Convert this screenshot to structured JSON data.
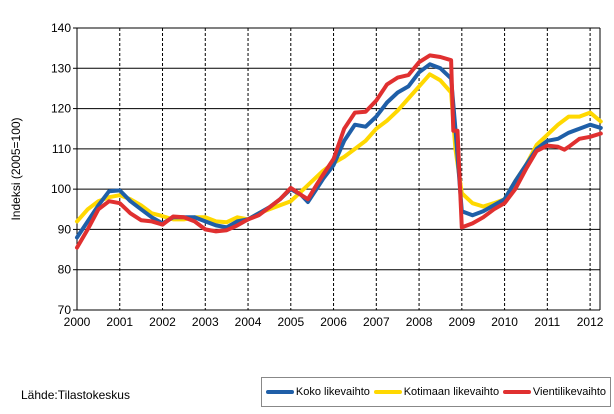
{
  "chart_data": {
    "type": "line",
    "title": "",
    "xlabel": "",
    "ylabel": "Indeksi (2005=100)",
    "xlim": [
      2000,
      2012.25
    ],
    "ylim": [
      70,
      140
    ],
    "yticks": [
      70,
      80,
      90,
      100,
      110,
      120,
      130,
      140
    ],
    "xticks": [
      "2000",
      "2001",
      "2002",
      "2003",
      "2004",
      "2005",
      "2006",
      "2007",
      "2008",
      "2009",
      "2010",
      "2011",
      "2012"
    ],
    "grid": {
      "horizontal": "solid",
      "vertical": "dashed"
    },
    "legend_position": "bottom-right",
    "series": [
      {
        "name": "Koko likevaihto",
        "color": "#1f5fa8",
        "points": [
          [
            2000,
            88
          ],
          [
            2000.25,
            92
          ],
          [
            2000.5,
            96
          ],
          [
            2000.75,
            99.5
          ],
          [
            2001,
            99.7
          ],
          [
            2001.25,
            97
          ],
          [
            2001.5,
            95
          ],
          [
            2001.75,
            93
          ],
          [
            2002,
            91.5
          ],
          [
            2002.25,
            93
          ],
          [
            2002.5,
            93
          ],
          [
            2002.75,
            93
          ],
          [
            2003,
            92
          ],
          [
            2003.25,
            91
          ],
          [
            2003.5,
            90.5
          ],
          [
            2003.75,
            92
          ],
          [
            2004,
            92.5
          ],
          [
            2004.25,
            94
          ],
          [
            2004.5,
            95.5
          ],
          [
            2004.75,
            97.5
          ],
          [
            2005,
            100
          ],
          [
            2005.25,
            98.5
          ],
          [
            2005.4,
            96.8
          ],
          [
            2005.6,
            100
          ],
          [
            2005.75,
            102.5
          ],
          [
            2006,
            106
          ],
          [
            2006.25,
            112
          ],
          [
            2006.5,
            116
          ],
          [
            2006.75,
            115.5
          ],
          [
            2007,
            118
          ],
          [
            2007.25,
            121.5
          ],
          [
            2007.5,
            124
          ],
          [
            2007.75,
            125.5
          ],
          [
            2008,
            129
          ],
          [
            2008.25,
            131
          ],
          [
            2008.5,
            130
          ],
          [
            2008.75,
            127.5
          ],
          [
            2008.85,
            115
          ],
          [
            2009,
            94.5
          ],
          [
            2009.25,
            93.5
          ],
          [
            2009.5,
            94.5
          ],
          [
            2009.75,
            96
          ],
          [
            2010,
            97.5
          ],
          [
            2010.25,
            102
          ],
          [
            2010.5,
            106
          ],
          [
            2010.75,
            110
          ],
          [
            2011,
            112
          ],
          [
            2011.25,
            112.5
          ],
          [
            2011.5,
            114
          ],
          [
            2011.75,
            115
          ],
          [
            2012,
            116
          ],
          [
            2012.25,
            115.2
          ]
        ]
      },
      {
        "name": "Kotimaan likevaihto",
        "color": "#ffd800",
        "points": [
          [
            2000,
            92
          ],
          [
            2000.25,
            95
          ],
          [
            2000.5,
            97
          ],
          [
            2000.75,
            98
          ],
          [
            2001,
            98.5
          ],
          [
            2001.25,
            97.5
          ],
          [
            2001.5,
            96
          ],
          [
            2001.75,
            94
          ],
          [
            2002,
            93.3
          ],
          [
            2002.25,
            92.5
          ],
          [
            2002.5,
            92.5
          ],
          [
            2002.75,
            93
          ],
          [
            2003,
            93
          ],
          [
            2003.25,
            92
          ],
          [
            2003.5,
            91.8
          ],
          [
            2003.75,
            93
          ],
          [
            2004,
            92.5
          ],
          [
            2004.25,
            94
          ],
          [
            2004.5,
            95
          ],
          [
            2004.75,
            96
          ],
          [
            2005,
            97
          ],
          [
            2005.25,
            99.5
          ],
          [
            2005.5,
            102
          ],
          [
            2005.75,
            104.5
          ],
          [
            2006,
            106.5
          ],
          [
            2006.25,
            108
          ],
          [
            2006.5,
            110
          ],
          [
            2006.75,
            112
          ],
          [
            2007,
            115
          ],
          [
            2007.25,
            117
          ],
          [
            2007.5,
            119.5
          ],
          [
            2007.75,
            122.5
          ],
          [
            2008,
            125.5
          ],
          [
            2008.25,
            128.5
          ],
          [
            2008.5,
            127
          ],
          [
            2008.75,
            124
          ],
          [
            2008.85,
            110
          ],
          [
            2009,
            99
          ],
          [
            2009.25,
            96.5
          ],
          [
            2009.5,
            95.7
          ],
          [
            2009.75,
            96.5
          ],
          [
            2010,
            97.5
          ],
          [
            2010.25,
            102
          ],
          [
            2010.5,
            106
          ],
          [
            2010.75,
            111
          ],
          [
            2011,
            113.5
          ],
          [
            2011.25,
            116
          ],
          [
            2011.5,
            118
          ],
          [
            2011.75,
            118
          ],
          [
            2012,
            119
          ],
          [
            2012.25,
            116.8
          ]
        ]
      },
      {
        "name": "Vientilikevaihto",
        "color": "#e03030",
        "points": [
          [
            2000,
            85.5
          ],
          [
            2000.25,
            90
          ],
          [
            2000.5,
            95
          ],
          [
            2000.75,
            97
          ],
          [
            2001,
            96.5
          ],
          [
            2001.25,
            94
          ],
          [
            2001.5,
            92.3
          ],
          [
            2001.75,
            92
          ],
          [
            2002,
            91.2
          ],
          [
            2002.25,
            93.2
          ],
          [
            2002.5,
            93
          ],
          [
            2002.75,
            92
          ],
          [
            2003,
            90
          ],
          [
            2003.25,
            89.5
          ],
          [
            2003.5,
            89.8
          ],
          [
            2003.75,
            91
          ],
          [
            2004,
            92.5
          ],
          [
            2004.25,
            93.5
          ],
          [
            2004.5,
            95.5
          ],
          [
            2004.75,
            97.5
          ],
          [
            2005,
            100.3
          ],
          [
            2005.25,
            98.5
          ],
          [
            2005.4,
            97.5
          ],
          [
            2005.6,
            101
          ],
          [
            2005.75,
            103.5
          ],
          [
            2006,
            107.5
          ],
          [
            2006.25,
            115
          ],
          [
            2006.5,
            119
          ],
          [
            2006.75,
            119.2
          ],
          [
            2007,
            122
          ],
          [
            2007.25,
            126
          ],
          [
            2007.5,
            127.7
          ],
          [
            2007.75,
            128.3
          ],
          [
            2008,
            131.5
          ],
          [
            2008.25,
            133.2
          ],
          [
            2008.5,
            132.8
          ],
          [
            2008.75,
            132
          ],
          [
            2008.8,
            114.5
          ],
          [
            2008.9,
            114.5
          ],
          [
            2009,
            90.5
          ],
          [
            2009.25,
            91.5
          ],
          [
            2009.5,
            93
          ],
          [
            2009.75,
            95
          ],
          [
            2010,
            96.5
          ],
          [
            2010.25,
            100
          ],
          [
            2010.5,
            105
          ],
          [
            2010.75,
            109.5
          ],
          [
            2011,
            110.8
          ],
          [
            2011.25,
            110.5
          ],
          [
            2011.4,
            109.8
          ],
          [
            2011.5,
            110.5
          ],
          [
            2011.75,
            112.5
          ],
          [
            2012,
            113
          ],
          [
            2012.25,
            113.8
          ]
        ]
      }
    ]
  },
  "source": "Lähde:Tilastokeskus"
}
